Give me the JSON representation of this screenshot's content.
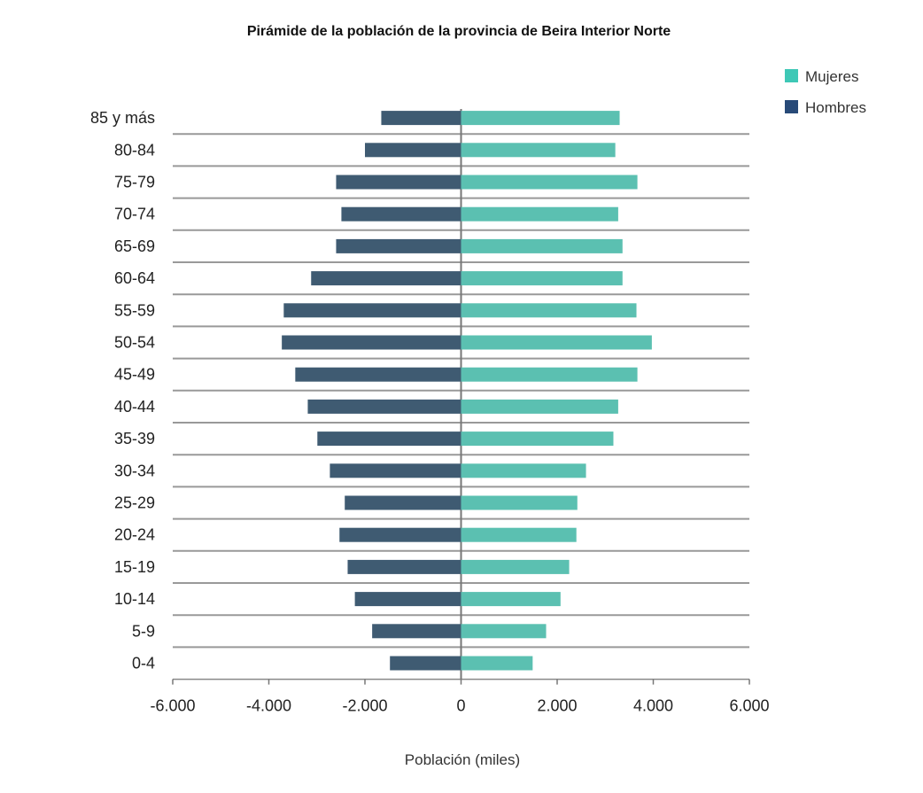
{
  "chart_data": {
    "type": "bar",
    "orientation": "horizontal",
    "title": "Pirámide de la población de la provincia de Beira Interior Norte",
    "xlabel": "Población (miles)",
    "ylabel": "",
    "xlim": [
      -6000,
      6000
    ],
    "xticks": [
      -6000,
      -4000,
      -2000,
      0,
      2000,
      4000,
      6000
    ],
    "xtick_labels": [
      "-6.000",
      "-4.000",
      "-2.000",
      "0",
      "2.000",
      "4.000",
      "6.000"
    ],
    "categories": [
      "85 y más",
      "80-84",
      "75-79",
      "70-74",
      "65-69",
      "60-64",
      "55-59",
      "50-54",
      "45-49",
      "40-44",
      "35-39",
      "30-34",
      "25-29",
      "20-24",
      "15-19",
      "10-14",
      "5-9",
      "0-4"
    ],
    "series": [
      {
        "name": "Mujeres",
        "color": "#5bc0b1",
        "legend_color": "#3ec8b6",
        "values": [
          3300,
          3210,
          3670,
          3270,
          3360,
          3360,
          3650,
          3970,
          3670,
          3270,
          3170,
          2600,
          2420,
          2400,
          2250,
          2070,
          1770,
          1490
        ]
      },
      {
        "name": "Hombres",
        "color": "#3f5b72",
        "legend_color": "#284a78",
        "values": [
          -1660,
          -2000,
          -2600,
          -2490,
          -2600,
          -3120,
          -3690,
          -3730,
          -3450,
          -3190,
          -2990,
          -2730,
          -2420,
          -2530,
          -2360,
          -2210,
          -1850,
          -1480
        ]
      }
    ],
    "legend_position": "top-right",
    "grid": true
  }
}
